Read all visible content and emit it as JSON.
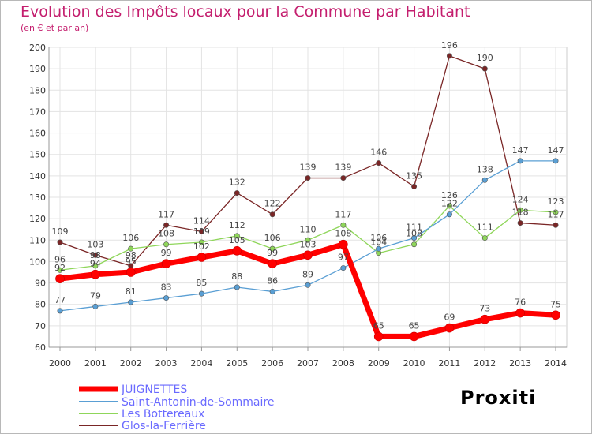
{
  "title": "Evolution des Impôts locaux pour la Commune par Habitant",
  "subtitle": "(en € et par an)",
  "logo": "Proxiti",
  "chart_data": {
    "type": "line",
    "title": "Evolution des Impôts locaux pour la Commune par Habitant",
    "subtitle": "(en € et par an)",
    "xlabel": "",
    "ylabel": "",
    "x": [
      2000,
      2001,
      2002,
      2003,
      2004,
      2005,
      2006,
      2007,
      2008,
      2009,
      2010,
      2011,
      2012,
      2013,
      2014
    ],
    "yticks": [
      60,
      70,
      80,
      90,
      100,
      110,
      120,
      130,
      140,
      150,
      160,
      170,
      180,
      190,
      200
    ],
    "ylim": [
      60,
      200
    ],
    "grid": true,
    "legend_position": "bottom-left",
    "series": [
      {
        "name": "JUIGNETTES",
        "color": "#ff0000",
        "values": [
          92,
          94,
          95,
          99,
          102,
          105,
          99,
          103,
          108,
          65,
          65,
          69,
          73,
          76,
          75
        ]
      },
      {
        "name": "Saint-Antonin-de-Sommaire",
        "color": "#5a9fd4",
        "values": [
          77,
          79,
          81,
          83,
          85,
          88,
          86,
          89,
          97,
          106,
          111,
          122,
          138,
          147,
          147
        ]
      },
      {
        "name": "Les Bottereaux",
        "color": "#8fd65a",
        "values": [
          96,
          98,
          106,
          108,
          109,
          112,
          106,
          110,
          117,
          104,
          108,
          126,
          111,
          124,
          123
        ]
      },
      {
        "name": "Glos-la-Ferrière",
        "color": "#7a2626",
        "values": [
          109,
          103,
          98,
          117,
          114,
          132,
          122,
          139,
          139,
          146,
          135,
          196,
          190,
          118,
          117
        ]
      }
    ]
  }
}
